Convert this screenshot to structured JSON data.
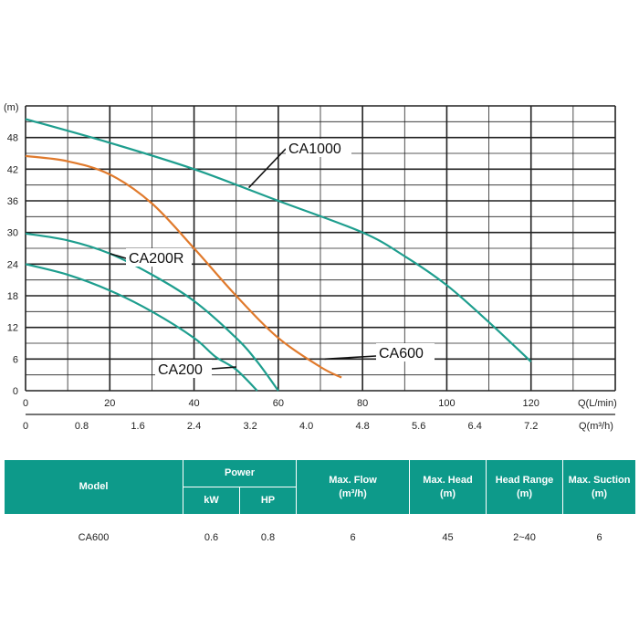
{
  "chart_data": {
    "type": "line",
    "ylabel": "(m)",
    "xlabel": "Q(L/min)",
    "xlabel2": "Q(m³/h)",
    "y_ticks": [
      "0",
      "6",
      "12",
      "18",
      "24",
      "30",
      "36",
      "42",
      "48"
    ],
    "x_ticks": [
      "0",
      "20",
      "40",
      "60",
      "80",
      "100",
      "120"
    ],
    "x2_ticks": [
      "0",
      "0.8",
      "1.6",
      "2.4",
      "3.2",
      "4.0",
      "4.8",
      "5.6",
      "6.4",
      "7.2"
    ],
    "xlim": [
      0,
      140
    ],
    "ylim": [
      0,
      54
    ],
    "grid": true,
    "series": [
      {
        "name": "CA1000",
        "color": "#1e9e8e",
        "x": [
          0,
          20,
          40,
          60,
          80,
          90,
          100,
          110,
          120
        ],
        "y": [
          51.5,
          47,
          42,
          36,
          30,
          25.5,
          20,
          13,
          5.5
        ]
      },
      {
        "name": "CA600",
        "color": "#e07a2c",
        "x": [
          0,
          10,
          20,
          30,
          40,
          50,
          60,
          70,
          75
        ],
        "y": [
          44.5,
          43.5,
          41,
          35.5,
          27,
          18,
          10,
          4.5,
          2.5
        ]
      },
      {
        "name": "CA200R",
        "color": "#1e9e8e",
        "x": [
          0,
          10,
          20,
          30,
          40,
          50,
          55,
          60
        ],
        "y": [
          29.8,
          28.5,
          26,
          22,
          17,
          10,
          5.5,
          0
        ]
      },
      {
        "name": "CA200",
        "color": "#1e9e8e",
        "x": [
          0,
          10,
          20,
          30,
          40,
          45,
          50,
          55
        ],
        "y": [
          24,
          22,
          19,
          15,
          10,
          6.5,
          4,
          0
        ]
      }
    ],
    "annotations": [
      {
        "text": "CA1000",
        "series": "CA1000"
      },
      {
        "text": "CA600",
        "series": "CA600"
      },
      {
        "text": "CA200R",
        "series": "CA200R"
      },
      {
        "text": "CA200",
        "series": "CA200"
      }
    ]
  },
  "table": {
    "header_color": "#0d9a8a",
    "model_label": "Model",
    "power_label": "Power",
    "kw_label": "kW",
    "hp_label": "HP",
    "max_flow_label": "Max. Flow",
    "max_flow_unit": "(m³/h)",
    "max_head_label": "Max. Head",
    "max_head_unit": "(m)",
    "head_range_label": "Head Range",
    "head_range_unit": "(m)",
    "max_suction_label": "Max. Suction",
    "max_suction_unit": "(m)",
    "row": {
      "model": "CA600",
      "kw": "0.6",
      "hp": "0.8",
      "max_flow": "6",
      "max_head": "45",
      "head_range": "2~40",
      "max_suction": "6"
    }
  }
}
